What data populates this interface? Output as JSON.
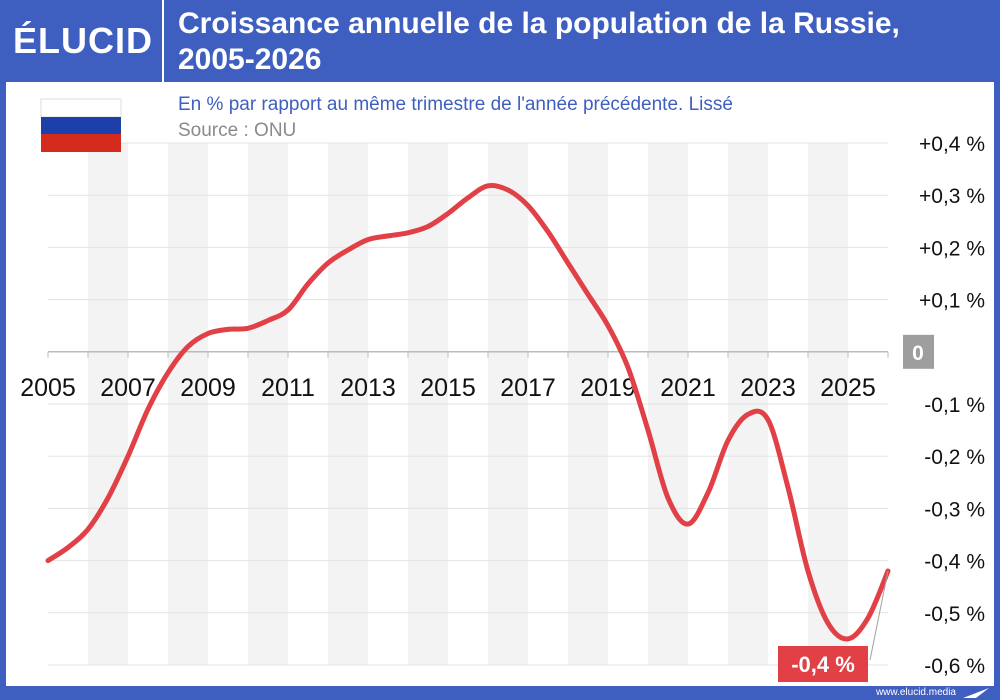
{
  "brand": {
    "logo": "ÉLUCID",
    "footer": "www.elucid.media"
  },
  "title_line1": "Croissance annuelle de la population de la Russie,",
  "title_line2": "2005-2026",
  "flag": {
    "name": "russia-flag",
    "colors": [
      "#ffffff",
      "#1C3FAA",
      "#D52B1E"
    ]
  },
  "colors": {
    "header_bg": "#3F5FC0",
    "line": "#E04046",
    "badge_bg": "#E04046",
    "zero_badge_bg": "#9E9E9E",
    "subtitle": "#3F5FC0",
    "source": "#8A8A8A"
  },
  "chart_data": {
    "type": "line",
    "title": "Croissance annuelle de la population de la Russie, 2005-2026",
    "subtitle": "En % par rapport au même trimestre de l'année précédente. Lissé",
    "source": "Source : ONU",
    "xlim": [
      2005,
      2026
    ],
    "ylim": [
      -0.6,
      0.4
    ],
    "y_ticks": [
      {
        "value": 0.4,
        "label": "+0,4 %"
      },
      {
        "value": 0.3,
        "label": "+0,3 %"
      },
      {
        "value": 0.2,
        "label": "+0,2 %"
      },
      {
        "value": 0.1,
        "label": "+0,1 %"
      },
      {
        "value": 0.0,
        "label": "0"
      },
      {
        "value": -0.1,
        "label": "-0,1 %"
      },
      {
        "value": -0.2,
        "label": "-0,2 %"
      },
      {
        "value": -0.3,
        "label": "-0,3 %"
      },
      {
        "value": -0.4,
        "label": "-0,4 %"
      },
      {
        "value": -0.5,
        "label": "-0,5 %"
      },
      {
        "value": -0.6,
        "label": "-0,6 %"
      }
    ],
    "x_ticks": [
      2005,
      2007,
      2009,
      2011,
      2013,
      2015,
      2017,
      2019,
      2021,
      2023,
      2025
    ],
    "grid": true,
    "series": [
      {
        "points": [
          [
            2005.0,
            -0.4
          ],
          [
            2005.5,
            -0.375
          ],
          [
            2006.0,
            -0.34
          ],
          [
            2006.5,
            -0.28
          ],
          [
            2007.0,
            -0.2
          ],
          [
            2007.5,
            -0.11
          ],
          [
            2008.0,
            -0.04
          ],
          [
            2008.5,
            0.01
          ],
          [
            2009.0,
            0.035
          ],
          [
            2009.5,
            0.043
          ],
          [
            2010.0,
            0.045
          ],
          [
            2010.5,
            0.06
          ],
          [
            2011.0,
            0.08
          ],
          [
            2011.5,
            0.13
          ],
          [
            2012.0,
            0.17
          ],
          [
            2012.5,
            0.195
          ],
          [
            2013.0,
            0.215
          ],
          [
            2013.5,
            0.222
          ],
          [
            2014.0,
            0.228
          ],
          [
            2014.5,
            0.24
          ],
          [
            2015.0,
            0.265
          ],
          [
            2015.5,
            0.295
          ],
          [
            2016.0,
            0.318
          ],
          [
            2016.5,
            0.31
          ],
          [
            2017.0,
            0.28
          ],
          [
            2017.5,
            0.23
          ],
          [
            2018.0,
            0.17
          ],
          [
            2018.5,
            0.11
          ],
          [
            2019.0,
            0.05
          ],
          [
            2019.5,
            -0.03
          ],
          [
            2020.0,
            -0.15
          ],
          [
            2020.5,
            -0.28
          ],
          [
            2021.0,
            -0.33
          ],
          [
            2021.5,
            -0.27
          ],
          [
            2022.0,
            -0.17
          ],
          [
            2022.5,
            -0.12
          ],
          [
            2023.0,
            -0.13
          ],
          [
            2023.5,
            -0.26
          ],
          [
            2024.0,
            -0.42
          ],
          [
            2024.5,
            -0.52
          ],
          [
            2025.0,
            -0.55
          ],
          [
            2025.5,
            -0.51
          ],
          [
            2026.0,
            -0.42
          ]
        ]
      }
    ],
    "last_value_label": "-0,4 %"
  }
}
